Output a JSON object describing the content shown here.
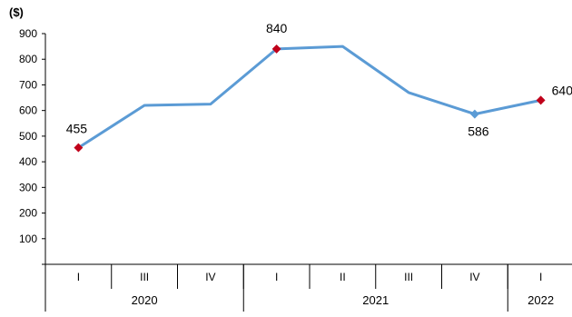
{
  "chart_data": {
    "type": "line",
    "ylabel": "($)",
    "ylim": [
      0,
      900
    ],
    "yticks": [
      100,
      200,
      300,
      400,
      500,
      600,
      700,
      800,
      900
    ],
    "categories": [
      "I",
      "III",
      "IV",
      "I",
      "II",
      "III",
      "IV",
      "I"
    ],
    "years": [
      {
        "label": "2020",
        "span": 3
      },
      {
        "label": "2021",
        "span": 4
      },
      {
        "label": "2022",
        "span": 1
      }
    ],
    "series": [
      {
        "values": [
          455,
          620,
          625,
          840,
          850,
          670,
          586,
          640
        ]
      }
    ],
    "data_labels": [
      {
        "index": 0,
        "text": "455"
      },
      {
        "index": 3,
        "text": "840"
      },
      {
        "index": 6,
        "text": "586"
      },
      {
        "index": 7,
        "text": "640"
      }
    ],
    "line_color": "#5b9bd5",
    "marker_color": "#c0001a"
  }
}
